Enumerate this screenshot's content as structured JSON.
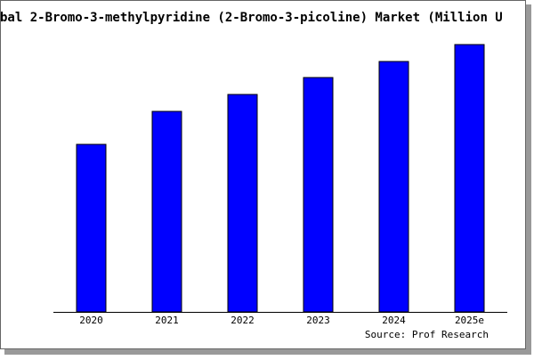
{
  "chart_data": {
    "type": "bar",
    "title": "bal 2-Bromo-3-methylpyridine (2-Bromo-3-picoline) Market (Million U",
    "categories": [
      "2020",
      "2021",
      "2022",
      "2023",
      "2024",
      "2025e"
    ],
    "values": [
      188,
      225,
      244,
      263,
      281,
      300
    ],
    "color": "#0000ff",
    "source": "Source: Prof Research"
  }
}
